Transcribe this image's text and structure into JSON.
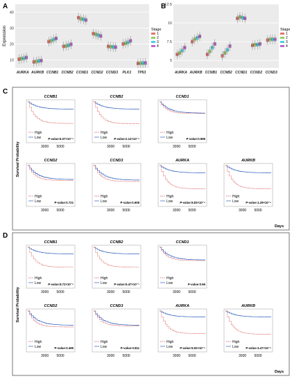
{
  "panel_labels": {
    "A": "A",
    "B": "B",
    "C": "C",
    "D": "D"
  },
  "stage_legend": {
    "title": "Stage",
    "items": [
      "1",
      "2",
      "3",
      "4"
    ]
  },
  "stage_colors": [
    "#e57373",
    "#9ccc65",
    "#4dd0e1",
    "#ba68c8"
  ],
  "survival_colors": {
    "high": "#d9534f",
    "low": "#2f5fbf"
  },
  "km_legend": {
    "high": "High",
    "low": "Low"
  },
  "shared_axis": {
    "y_title": "Survival Probability",
    "x_title": "Days",
    "x_ticks": [
      "3000",
      "5000"
    ]
  },
  "chart_data": [
    {
      "panel": "A",
      "type": "box",
      "ylabel": "Expression",
      "ylim": [
        5,
        45
      ],
      "yticks": [
        10,
        20,
        30,
        40
      ],
      "categories": [
        "AURKA",
        "AURKB",
        "CCNB1",
        "CCNB2",
        "CCND1",
        "CCND2",
        "CCND3",
        "PLK1",
        "TP53"
      ],
      "series": [
        {
          "name": "1",
          "values": [
            10.5,
            8.8,
            21.5,
            18.5,
            36.5,
            26.5,
            18.5,
            20.0,
            7.8
          ]
        },
        {
          "name": "2",
          "values": [
            10.8,
            9.0,
            22.0,
            18.8,
            35.8,
            26.0,
            18.3,
            20.5,
            7.9
          ]
        },
        {
          "name": "3",
          "values": [
            11.0,
            9.3,
            22.8,
            19.2,
            35.5,
            25.5,
            18.1,
            21.0,
            8.0
          ]
        },
        {
          "name": "4",
          "values": [
            11.5,
            9.6,
            23.5,
            19.8,
            35.0,
            25.0,
            18.0,
            22.0,
            8.1
          ]
        }
      ]
    },
    {
      "panel": "B",
      "type": "box",
      "ylabel": "",
      "ylim": [
        4,
        12.5
      ],
      "yticks": [
        5,
        7.5,
        10,
        12.5
      ],
      "categories": [
        "AURKA",
        "AURKB",
        "CCNB1",
        "CCNB2",
        "CCND1",
        "CCND2",
        "CCND3"
      ],
      "series": [
        {
          "name": "1",
          "values": [
            5.8,
            7.5,
            5.8,
            5.6,
            10.6,
            7.0,
            7.7
          ]
        },
        {
          "name": "2",
          "values": [
            6.0,
            7.8,
            6.2,
            6.0,
            10.8,
            7.1,
            7.8
          ]
        },
        {
          "name": "3",
          "values": [
            6.3,
            8.0,
            6.7,
            6.4,
            10.7,
            7.1,
            7.8
          ]
        },
        {
          "name": "4",
          "values": [
            6.7,
            8.2,
            7.2,
            6.9,
            10.6,
            7.2,
            7.8
          ]
        }
      ]
    },
    {
      "panel": "C",
      "type": "line",
      "plots": [
        {
          "gene": "CCNB1",
          "pvalue": "P-value:6.07×10⁻⁵",
          "high_plateau": 0.35,
          "low_plateau": 0.78
        },
        {
          "gene": "CCNB2",
          "pvalue": "P-value:2.12×10⁻⁵",
          "high_plateau": 0.34,
          "low_plateau": 0.78
        },
        {
          "gene": "CCND1",
          "pvalue": "P-value:0.996",
          "high_plateau": 0.65,
          "low_plateau": 0.66
        },
        {
          "gene": "CCND2",
          "pvalue": "P-value:0.721",
          "high_plateau": 0.55,
          "low_plateau": 0.58
        },
        {
          "gene": "CCND3",
          "pvalue": "P-value:0.608",
          "high_plateau": 0.52,
          "low_plateau": 0.56
        },
        {
          "gene": "AURKA",
          "pvalue": "P-value:9.83×10⁻⁶",
          "high_plateau": 0.3,
          "low_plateau": 0.78
        },
        {
          "gene": "AURKB",
          "pvalue": "P-value:1.29×10⁻⁶",
          "high_plateau": 0.3,
          "low_plateau": 0.78
        }
      ]
    },
    {
      "panel": "D",
      "type": "line",
      "plots": [
        {
          "gene": "CCNB1",
          "pvalue": "P-value:8.72×10⁻⁶",
          "high_plateau": 0.4,
          "low_plateau": 0.8
        },
        {
          "gene": "CCNB2",
          "pvalue": "P-value:5.47×10⁻⁵",
          "high_plateau": 0.4,
          "low_plateau": 0.8
        },
        {
          "gene": "CCND1",
          "pvalue": "P-value:0.66",
          "high_plateau": 0.6,
          "low_plateau": 0.62
        },
        {
          "gene": "CCND2",
          "pvalue": "P-value:0.495",
          "high_plateau": 0.52,
          "low_plateau": 0.57
        },
        {
          "gene": "CCND3",
          "pvalue": "P-value:0.811",
          "high_plateau": 0.55,
          "low_plateau": 0.57
        },
        {
          "gene": "AURKA",
          "pvalue": "P-value:5.92×10⁻⁶",
          "high_plateau": 0.32,
          "low_plateau": 0.82
        },
        {
          "gene": "AURKB",
          "pvalue": "P-value:3.47×10⁻⁶",
          "high_plateau": 0.3,
          "low_plateau": 0.82
        }
      ]
    }
  ]
}
